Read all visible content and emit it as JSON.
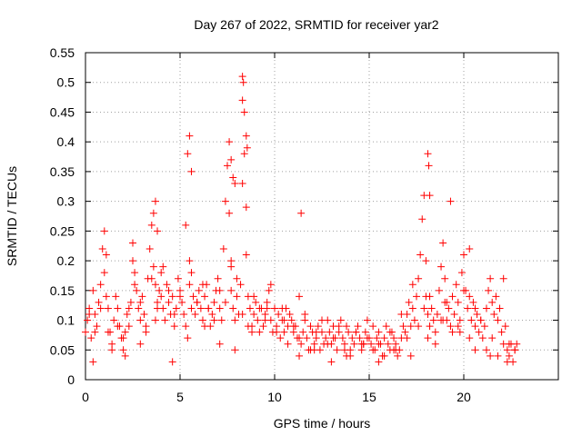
{
  "chart_data": {
    "type": "scatter",
    "title": "Day 267 of 2022, SRMTID for receiver yar2",
    "xlabel": "GPS time / hours",
    "ylabel": "SRMTID / TECUs",
    "xlim": [
      0,
      25
    ],
    "ylim": [
      0,
      0.55
    ],
    "grid": true,
    "marker": "+",
    "color": "#ff0000",
    "x_ticks": [
      0,
      5,
      10,
      15,
      20
    ],
    "x_tick_labels": [
      "0",
      "5",
      "10",
      "15",
      "20"
    ],
    "y_ticks": [
      0,
      0.05,
      0.1,
      0.15,
      0.2,
      0.25,
      0.3,
      0.35,
      0.4,
      0.45,
      0.5,
      0.55
    ],
    "y_tick_labels": [
      "0",
      "0.05",
      "0.1",
      "0.15",
      "0.2",
      "0.25",
      "0.3",
      "0.35",
      "0.4",
      "0.45",
      "0.5",
      "0.55"
    ],
    "series": [
      {
        "name": "SRMTID",
        "x": [
          0.0,
          0.1,
          0.2,
          0.3,
          0.4,
          0.5,
          0.6,
          0.7,
          0.8,
          0.9,
          1.0,
          1.0,
          1.1,
          1.2,
          1.3,
          1.4,
          1.5,
          1.6,
          1.7,
          1.8,
          1.9,
          2.0,
          2.1,
          2.2,
          2.3,
          2.4,
          2.5,
          2.5,
          2.6,
          2.7,
          2.8,
          2.9,
          3.0,
          3.1,
          3.2,
          3.3,
          3.4,
          3.5,
          3.6,
          3.7,
          3.8,
          3.9,
          4.0,
          4.0,
          4.1,
          4.2,
          4.3,
          4.4,
          4.5,
          4.6,
          4.7,
          4.8,
          4.9,
          5.0,
          5.1,
          5.2,
          5.3,
          5.4,
          5.5,
          5.5,
          5.6,
          5.7,
          5.8,
          5.9,
          6.0,
          6.1,
          6.2,
          6.3,
          6.4,
          6.5,
          6.6,
          6.7,
          6.8,
          6.9,
          7.0,
          7.1,
          7.2,
          7.3,
          7.4,
          7.5,
          7.6,
          7.7,
          7.7,
          7.8,
          7.9,
          8.0,
          8.1,
          8.2,
          8.3,
          8.3,
          8.4,
          8.5,
          8.5,
          8.6,
          8.7,
          8.8,
          8.9,
          9.0,
          9.1,
          9.2,
          9.3,
          9.4,
          9.5,
          9.6,
          9.7,
          9.8,
          9.9,
          10.0,
          10.1,
          10.2,
          10.3,
          10.4,
          10.5,
          10.6,
          10.7,
          10.8,
          10.9,
          11.0,
          11.1,
          11.2,
          11.3,
          11.4,
          11.5,
          11.6,
          11.7,
          11.8,
          11.9,
          12.0,
          12.1,
          12.2,
          12.3,
          12.4,
          12.5,
          12.6,
          12.7,
          12.8,
          12.9,
          13.0,
          13.1,
          13.2,
          13.3,
          13.4,
          13.5,
          13.6,
          13.7,
          13.8,
          13.9,
          14.0,
          14.1,
          14.2,
          14.3,
          14.4,
          14.5,
          14.6,
          14.7,
          14.8,
          14.9,
          15.0,
          15.1,
          15.2,
          15.3,
          15.4,
          15.5,
          15.6,
          15.7,
          15.8,
          15.9,
          16.0,
          16.1,
          16.2,
          16.3,
          16.4,
          16.5,
          16.6,
          16.7,
          16.8,
          16.9,
          17.0,
          17.1,
          17.2,
          17.3,
          17.4,
          17.5,
          17.6,
          17.7,
          17.8,
          17.9,
          18.0,
          18.0,
          18.1,
          18.2,
          18.3,
          18.4,
          18.5,
          18.6,
          18.7,
          18.8,
          18.9,
          19.0,
          19.0,
          19.1,
          19.2,
          19.3,
          19.4,
          19.5,
          19.6,
          19.7,
          19.8,
          19.9,
          20.0,
          20.1,
          20.2,
          20.3,
          20.4,
          20.5,
          20.6,
          20.7,
          20.8,
          20.9,
          21.0,
          21.1,
          21.2,
          21.3,
          21.4,
          21.5,
          21.6,
          21.7,
          21.8,
          21.9,
          22.0,
          22.1,
          22.2,
          22.3,
          22.4,
          22.5,
          22.6,
          22.7,
          22.8,
          0.2,
          0.5,
          0.8,
          1.1,
          1.4,
          1.7,
          2.0,
          2.3,
          2.6,
          2.9,
          3.2,
          3.5,
          3.8,
          4.1,
          4.4,
          4.7,
          5.0,
          5.3,
          5.6,
          5.9,
          6.2,
          6.5,
          6.8,
          7.1,
          7.4,
          7.7,
          8.0,
          8.3,
          8.6,
          8.9,
          9.2,
          9.5,
          9.8,
          10.1,
          10.4,
          10.7,
          11.0,
          11.3,
          11.6,
          11.9,
          12.2,
          12.5,
          12.8,
          13.1,
          13.4,
          13.7,
          14.0,
          14.3,
          14.6,
          14.9,
          15.2,
          15.5,
          15.8,
          16.1,
          16.4,
          16.7,
          17.0,
          17.3,
          17.6,
          17.9,
          18.2,
          18.5,
          18.8,
          19.1,
          19.4,
          19.7,
          20.0,
          20.3,
          20.6,
          20.9,
          21.2,
          21.5,
          21.8,
          22.1,
          22.4,
          22.7,
          0.4,
          1.2,
          2.1,
          2.9,
          3.7,
          4.6,
          5.4,
          6.3,
          7.1,
          7.9,
          8.8,
          9.6,
          10.5,
          11.3,
          12.1,
          13.0,
          13.8,
          14.7,
          15.5,
          16.3,
          17.2,
          18.1,
          18.9,
          19.8,
          20.6,
          21.4,
          22.3,
          3.6,
          3.7,
          3.8,
          5.5,
          5.6,
          7.6,
          7.7,
          7.8,
          7.9,
          8.3,
          8.35,
          8.4,
          8.5,
          8.55,
          11.4,
          18.1,
          18.15,
          18.2,
          19.3,
          20.3
        ],
        "y": [
          0.08,
          0.1,
          0.12,
          0.07,
          0.15,
          0.11,
          0.09,
          0.13,
          0.16,
          0.22,
          0.25,
          0.18,
          0.21,
          0.12,
          0.08,
          0.06,
          0.1,
          0.14,
          0.12,
          0.09,
          0.07,
          0.05,
          0.08,
          0.11,
          0.09,
          0.13,
          0.2,
          0.23,
          0.18,
          0.15,
          0.12,
          0.1,
          0.14,
          0.11,
          0.09,
          0.17,
          0.22,
          0.26,
          0.19,
          0.16,
          0.13,
          0.15,
          0.18,
          0.14,
          0.12,
          0.1,
          0.16,
          0.13,
          0.11,
          0.14,
          0.09,
          0.12,
          0.17,
          0.15,
          0.13,
          0.11,
          0.26,
          0.38,
          0.2,
          0.16,
          0.12,
          0.14,
          0.11,
          0.13,
          0.15,
          0.12,
          0.1,
          0.14,
          0.16,
          0.12,
          0.09,
          0.11,
          0.13,
          0.15,
          0.17,
          0.12,
          0.1,
          0.22,
          0.3,
          0.36,
          0.28,
          0.19,
          0.15,
          0.12,
          0.1,
          0.14,
          0.11,
          0.16,
          0.33,
          0.47,
          0.38,
          0.29,
          0.21,
          0.14,
          0.12,
          0.09,
          0.11,
          0.13,
          0.1,
          0.08,
          0.12,
          0.09,
          0.11,
          0.13,
          0.15,
          0.1,
          0.08,
          0.12,
          0.09,
          0.11,
          0.07,
          0.1,
          0.08,
          0.12,
          0.09,
          0.11,
          0.1,
          0.08,
          0.09,
          0.07,
          0.14,
          0.06,
          0.08,
          0.1,
          0.07,
          0.05,
          0.09,
          0.08,
          0.06,
          0.07,
          0.09,
          0.05,
          0.08,
          0.06,
          0.07,
          0.1,
          0.08,
          0.06,
          0.09,
          0.07,
          0.05,
          0.08,
          0.1,
          0.07,
          0.06,
          0.09,
          0.08,
          0.05,
          0.07,
          0.06,
          0.08,
          0.09,
          0.07,
          0.05,
          0.06,
          0.08,
          0.1,
          0.07,
          0.06,
          0.09,
          0.05,
          0.07,
          0.08,
          0.06,
          0.04,
          0.07,
          0.09,
          0.06,
          0.05,
          0.08,
          0.07,
          0.06,
          0.04,
          0.05,
          0.07,
          0.09,
          0.08,
          0.11,
          0.13,
          0.09,
          0.12,
          0.1,
          0.14,
          0.17,
          0.21,
          0.27,
          0.31,
          0.2,
          0.14,
          0.11,
          0.09,
          0.12,
          0.1,
          0.08,
          0.11,
          0.15,
          0.19,
          0.23,
          0.17,
          0.13,
          0.1,
          0.12,
          0.09,
          0.14,
          0.11,
          0.16,
          0.13,
          0.1,
          0.18,
          0.21,
          0.15,
          0.12,
          0.14,
          0.1,
          0.13,
          0.09,
          0.11,
          0.08,
          0.1,
          0.07,
          0.09,
          0.12,
          0.15,
          0.17,
          0.13,
          0.11,
          0.14,
          0.1,
          0.12,
          0.08,
          0.06,
          0.09,
          0.05,
          0.04,
          0.06,
          0.03,
          0.05,
          0.06,
          0.11,
          0.08,
          0.12,
          0.14,
          0.05,
          0.09,
          0.07,
          0.12,
          0.16,
          0.13,
          0.08,
          0.17,
          0.12,
          0.19,
          0.15,
          0.11,
          0.14,
          0.09,
          0.18,
          0.13,
          0.16,
          0.12,
          0.1,
          0.15,
          0.13,
          0.2,
          0.17,
          0.11,
          0.09,
          0.14,
          0.12,
          0.1,
          0.16,
          0.08,
          0.12,
          0.06,
          0.09,
          0.07,
          0.11,
          0.05,
          0.08,
          0.1,
          0.06,
          0.07,
          0.09,
          0.05,
          0.04,
          0.08,
          0.06,
          0.07,
          0.05,
          0.06,
          0.04,
          0.08,
          0.05,
          0.11,
          0.07,
          0.16,
          0.09,
          0.12,
          0.14,
          0.06,
          0.1,
          0.13,
          0.08,
          0.09,
          0.15,
          0.07,
          0.12,
          0.1,
          0.05,
          0.07,
          0.04,
          0.17,
          0.06,
          0.05,
          0.03,
          0.08,
          0.04,
          0.06,
          0.1,
          0.03,
          0.07,
          0.09,
          0.06,
          0.05,
          0.08,
          0.12,
          0.1,
          0.04,
          0.05,
          0.03,
          0.04,
          0.06,
          0.03,
          0.05,
          0.04,
          0.07,
          0.1,
          0.08,
          0.05,
          0.04,
          0.03,
          0.28,
          0.3,
          0.25,
          0.41,
          0.35,
          0.4,
          0.37,
          0.34,
          0.33,
          0.51,
          0.5,
          0.45,
          0.41,
          0.39,
          0.28,
          0.38,
          0.36,
          0.31,
          0.3,
          0.22
        ]
      }
    ]
  }
}
